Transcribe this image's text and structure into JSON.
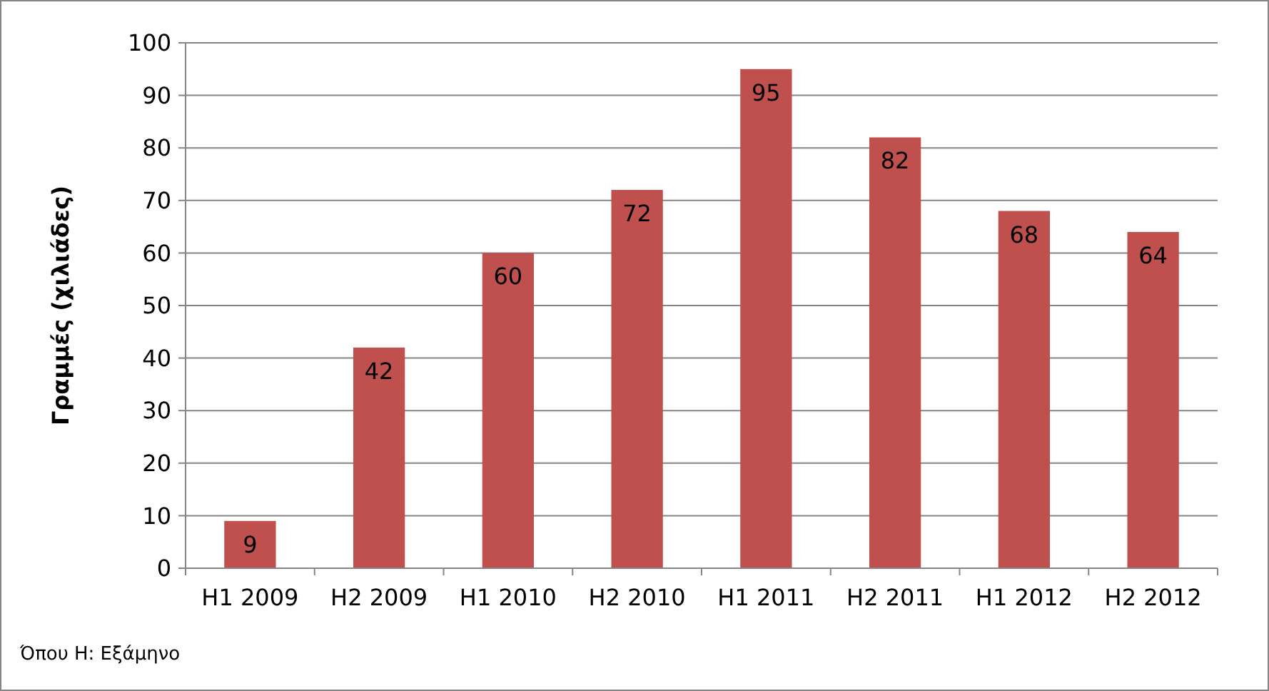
{
  "chart_data": {
    "type": "bar",
    "ylabel": "Γραμμές (χιλιάδες)",
    "categories": [
      "H1 2009",
      "H2 2009",
      "H1 2010",
      "H2 2010",
      "H1 2011",
      "H2 2011",
      "H1 2012",
      "H2 2012"
    ],
    "values": [
      9,
      42,
      60,
      72,
      95,
      82,
      68,
      64
    ],
    "color": "#c0504d",
    "ylim": [
      0,
      100
    ],
    "yticks": [
      0,
      10,
      20,
      30,
      40,
      50,
      60,
      70,
      80,
      90,
      100
    ],
    "grid": "y",
    "data_labels": true,
    "annotations": [
      "Όπου Η: Εξάμηνο"
    ]
  }
}
